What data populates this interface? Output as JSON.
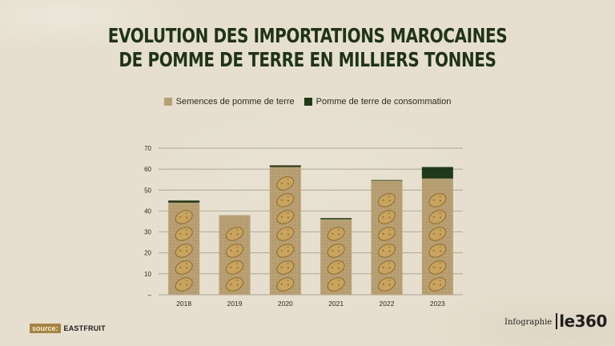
{
  "title_line1": "EVOLUTION DES IMPORTATIONS MAROCAINES",
  "title_line2": "DE POMME DE TERRE EN MILLIERS TONNES",
  "legend": [
    {
      "label": "Semences de pomme de terre",
      "color": "#b79f72"
    },
    {
      "label": "Pomme de terre de consommation",
      "color": "#1f3a1a"
    }
  ],
  "source": {
    "label": "source:",
    "value": "EASTFRUIT"
  },
  "credit": {
    "label": "Infographie",
    "brand": "le360"
  },
  "chart_data": {
    "type": "bar",
    "stacked": true,
    "categories": [
      "2018",
      "2019",
      "2020",
      "2021",
      "2022",
      "2023"
    ],
    "series": [
      {
        "name": "Semences de pomme de terre",
        "values": [
          44,
          38,
          61,
          36,
          54.5,
          55.5
        ]
      },
      {
        "name": "Pomme de terre de consommation",
        "values": [
          1,
          0,
          0.8,
          0.6,
          0.3,
          5.5
        ]
      }
    ],
    "ylim": [
      0,
      70
    ],
    "y_ticks": [
      "–",
      "10",
      "20",
      "30",
      "40",
      "50",
      "60",
      "70"
    ],
    "grid": true,
    "colors": {
      "seed": "#b79f72",
      "consumption": "#1f3a1a",
      "potato": "#c9a45e",
      "grid": "#9a927f"
    }
  }
}
